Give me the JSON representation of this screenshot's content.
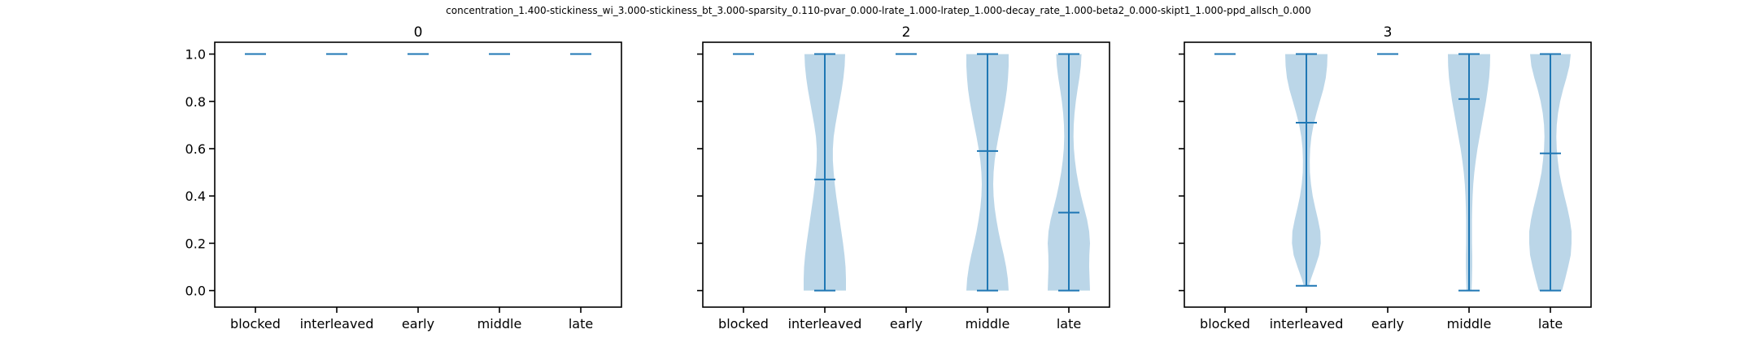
{
  "suptitle": "concentration_1.400-stickiness_wi_3.000-stickiness_bt_3.000-sparsity_0.110-pvar_0.000-lrate_1.000-lratep_1.000-decay_rate_1.000-beta2_0.000-skipt1_1.000-ppd_allsch_0.000",
  "colors": {
    "line": "#1f77b4",
    "body": "#1f77b4",
    "body_alpha": 0.3,
    "axes": "#000000"
  },
  "chart_data": [
    {
      "type": "violin",
      "title": "0",
      "categories": [
        "blocked",
        "interleaved",
        "early",
        "middle",
        "late"
      ],
      "yticks": [
        "0.0",
        "0.2",
        "0.4",
        "0.6",
        "0.8",
        "1.0"
      ],
      "ylim": [
        -0.07,
        1.05
      ],
      "show_ytick_labels": true,
      "violins": [
        {
          "min": 1.0,
          "max": 1.0,
          "mean": 1.0,
          "profile": []
        },
        {
          "min": 1.0,
          "max": 1.0,
          "mean": 1.0,
          "profile": []
        },
        {
          "min": 1.0,
          "max": 1.0,
          "mean": 1.0,
          "profile": []
        },
        {
          "min": 1.0,
          "max": 1.0,
          "mean": 1.0,
          "profile": []
        },
        {
          "min": 1.0,
          "max": 1.0,
          "mean": 1.0,
          "profile": []
        }
      ]
    },
    {
      "type": "violin",
      "title": "2",
      "categories": [
        "blocked",
        "interleaved",
        "early",
        "middle",
        "late"
      ],
      "yticks": [
        "0.0",
        "0.2",
        "0.4",
        "0.6",
        "0.8",
        "1.0"
      ],
      "ylim": [
        -0.07,
        1.05
      ],
      "show_ytick_labels": false,
      "violins": [
        {
          "min": 1.0,
          "max": 1.0,
          "mean": 1.0,
          "profile": []
        },
        {
          "min": 0.0,
          "max": 1.0,
          "mean": 0.47,
          "profile": [
            [
              0.0,
              1.0
            ],
            [
              0.05,
              1.0
            ],
            [
              0.1,
              0.98
            ],
            [
              0.15,
              0.93
            ],
            [
              0.2,
              0.86
            ],
            [
              0.25,
              0.78
            ],
            [
              0.3,
              0.7
            ],
            [
              0.35,
              0.62
            ],
            [
              0.4,
              0.54
            ],
            [
              0.45,
              0.47
            ],
            [
              0.5,
              0.42
            ],
            [
              0.55,
              0.38
            ],
            [
              0.6,
              0.38
            ],
            [
              0.65,
              0.42
            ],
            [
              0.7,
              0.5
            ],
            [
              0.75,
              0.6
            ],
            [
              0.8,
              0.7
            ],
            [
              0.85,
              0.8
            ],
            [
              0.9,
              0.88
            ],
            [
              0.95,
              0.94
            ],
            [
              1.0,
              0.96
            ]
          ]
        },
        {
          "min": 1.0,
          "max": 1.0,
          "mean": 1.0,
          "profile": []
        },
        {
          "min": 0.0,
          "max": 1.0,
          "mean": 0.59,
          "profile": [
            [
              0.0,
              1.0
            ],
            [
              0.05,
              0.96
            ],
            [
              0.1,
              0.88
            ],
            [
              0.15,
              0.77
            ],
            [
              0.2,
              0.64
            ],
            [
              0.25,
              0.52
            ],
            [
              0.3,
              0.42
            ],
            [
              0.35,
              0.34
            ],
            [
              0.4,
              0.29
            ],
            [
              0.45,
              0.27
            ],
            [
              0.5,
              0.29
            ],
            [
              0.55,
              0.34
            ],
            [
              0.6,
              0.42
            ],
            [
              0.65,
              0.52
            ],
            [
              0.7,
              0.63
            ],
            [
              0.75,
              0.74
            ],
            [
              0.8,
              0.84
            ],
            [
              0.85,
              0.92
            ],
            [
              0.9,
              0.97
            ],
            [
              0.95,
              1.0
            ],
            [
              1.0,
              1.0
            ]
          ]
        },
        {
          "min": 0.0,
          "max": 1.0,
          "mean": 0.33,
          "profile": [
            [
              0.0,
              1.0
            ],
            [
              0.05,
              0.98
            ],
            [
              0.1,
              0.96
            ],
            [
              0.15,
              0.97
            ],
            [
              0.2,
              1.0
            ],
            [
              0.25,
              0.96
            ],
            [
              0.3,
              0.86
            ],
            [
              0.35,
              0.72
            ],
            [
              0.4,
              0.58
            ],
            [
              0.45,
              0.46
            ],
            [
              0.5,
              0.36
            ],
            [
              0.55,
              0.29
            ],
            [
              0.6,
              0.24
            ],
            [
              0.65,
              0.22
            ],
            [
              0.7,
              0.23
            ],
            [
              0.75,
              0.27
            ],
            [
              0.8,
              0.33
            ],
            [
              0.85,
              0.41
            ],
            [
              0.9,
              0.5
            ],
            [
              0.95,
              0.57
            ],
            [
              1.0,
              0.6
            ]
          ]
        }
      ]
    },
    {
      "type": "violin",
      "title": "3",
      "categories": [
        "blocked",
        "interleaved",
        "early",
        "middle",
        "late"
      ],
      "yticks": [
        "0.0",
        "0.2",
        "0.4",
        "0.6",
        "0.8",
        "1.0"
      ],
      "ylim": [
        -0.07,
        1.05
      ],
      "show_ytick_labels": false,
      "violins": [
        {
          "min": 1.0,
          "max": 1.0,
          "mean": 1.0,
          "profile": []
        },
        {
          "min": 0.02,
          "max": 1.0,
          "mean": 0.71,
          "profile": [
            [
              0.02,
              0.12
            ],
            [
              0.05,
              0.22
            ],
            [
              0.1,
              0.42
            ],
            [
              0.15,
              0.6
            ],
            [
              0.2,
              0.68
            ],
            [
              0.25,
              0.66
            ],
            [
              0.3,
              0.55
            ],
            [
              0.35,
              0.42
            ],
            [
              0.4,
              0.3
            ],
            [
              0.45,
              0.22
            ],
            [
              0.5,
              0.17
            ],
            [
              0.55,
              0.16
            ],
            [
              0.6,
              0.18
            ],
            [
              0.65,
              0.24
            ],
            [
              0.7,
              0.34
            ],
            [
              0.75,
              0.48
            ],
            [
              0.8,
              0.64
            ],
            [
              0.85,
              0.8
            ],
            [
              0.9,
              0.92
            ],
            [
              0.95,
              0.98
            ],
            [
              1.0,
              1.0
            ]
          ]
        },
        {
          "min": 1.0,
          "max": 1.0,
          "mean": 1.0,
          "profile": []
        },
        {
          "min": 0.0,
          "max": 1.0,
          "mean": 0.81,
          "profile": [
            [
              0.0,
              0.12
            ],
            [
              0.05,
              0.14
            ],
            [
              0.1,
              0.15
            ],
            [
              0.15,
              0.15
            ],
            [
              0.2,
              0.14
            ],
            [
              0.25,
              0.14
            ],
            [
              0.3,
              0.14
            ],
            [
              0.35,
              0.15
            ],
            [
              0.4,
              0.17
            ],
            [
              0.45,
              0.2
            ],
            [
              0.5,
              0.25
            ],
            [
              0.55,
              0.32
            ],
            [
              0.6,
              0.4
            ],
            [
              0.65,
              0.5
            ],
            [
              0.7,
              0.6
            ],
            [
              0.75,
              0.7
            ],
            [
              0.8,
              0.8
            ],
            [
              0.85,
              0.88
            ],
            [
              0.9,
              0.95
            ],
            [
              0.95,
              0.99
            ],
            [
              1.0,
              1.0
            ]
          ]
        },
        {
          "min": 0.0,
          "max": 1.0,
          "mean": 0.58,
          "profile": [
            [
              0.0,
              0.55
            ],
            [
              0.05,
              0.7
            ],
            [
              0.1,
              0.84
            ],
            [
              0.15,
              0.96
            ],
            [
              0.2,
              1.0
            ],
            [
              0.25,
              1.0
            ],
            [
              0.3,
              0.92
            ],
            [
              0.35,
              0.8
            ],
            [
              0.4,
              0.66
            ],
            [
              0.45,
              0.53
            ],
            [
              0.5,
              0.42
            ],
            [
              0.55,
              0.35
            ],
            [
              0.6,
              0.3
            ],
            [
              0.65,
              0.28
            ],
            [
              0.7,
              0.3
            ],
            [
              0.75,
              0.36
            ],
            [
              0.8,
              0.46
            ],
            [
              0.85,
              0.6
            ],
            [
              0.9,
              0.76
            ],
            [
              0.95,
              0.9
            ],
            [
              1.0,
              0.96
            ]
          ]
        }
      ]
    }
  ]
}
